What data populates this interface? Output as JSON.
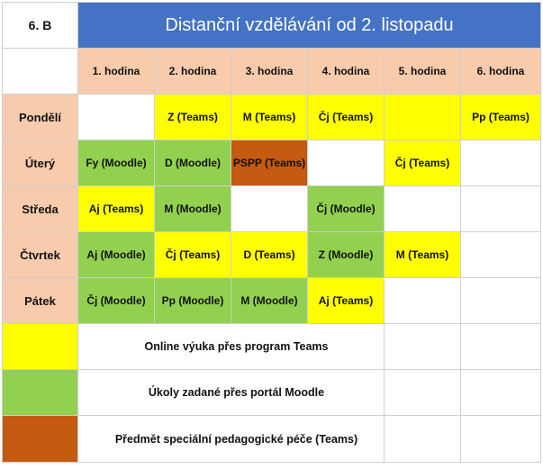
{
  "class_label": "6. B",
  "title": "Distanční vzdělávání  od 2. listopadu",
  "colors": {
    "header_blue": "#4472c4",
    "peach": "#f8cbad",
    "teams_yellow": "#ffff00",
    "moodle_green": "#92d050",
    "pspp_brown": "#c55a11",
    "white": "#ffffff"
  },
  "hours": [
    "1. hodina",
    "2. hodina",
    "3. hodina",
    "4. hodina",
    "5. hodina",
    "6. hodina"
  ],
  "days": [
    {
      "name": "Pondělí",
      "slots": [
        {
          "text": "",
          "type": "empty"
        },
        {
          "text": "Z (Teams)",
          "type": "teams"
        },
        {
          "text": "M (Teams)",
          "type": "teams"
        },
        {
          "text": "Čj (Teams)",
          "type": "teams"
        },
        {
          "text": "",
          "type": "teams"
        },
        {
          "text": "Pp (Teams)",
          "type": "teams"
        }
      ]
    },
    {
      "name": "Úterý",
      "slots": [
        {
          "text": "Fy (Moodle)",
          "type": "moodle"
        },
        {
          "text": "D (Moodle)",
          "type": "moodle"
        },
        {
          "text": "PSPP (Teams)",
          "type": "pspp"
        },
        {
          "text": "",
          "type": "empty"
        },
        {
          "text": "Čj (Teams)",
          "type": "teams"
        },
        {
          "text": "",
          "type": "empty"
        }
      ]
    },
    {
      "name": "Středa",
      "slots": [
        {
          "text": "Aj (Teams)",
          "type": "teams"
        },
        {
          "text": "M (Moodle)",
          "type": "moodle"
        },
        {
          "text": "",
          "type": "empty"
        },
        {
          "text": "Čj (Moodle)",
          "type": "moodle"
        },
        {
          "text": "",
          "type": "empty"
        },
        {
          "text": "",
          "type": "empty"
        }
      ]
    },
    {
      "name": "Čtvrtek",
      "slots": [
        {
          "text": "Aj (Moodle)",
          "type": "moodle"
        },
        {
          "text": "Čj (Teams)",
          "type": "teams"
        },
        {
          "text": "D (Teams)",
          "type": "teams"
        },
        {
          "text": "Z (Moodle)",
          "type": "moodle"
        },
        {
          "text": "M (Teams)",
          "type": "teams"
        },
        {
          "text": "",
          "type": "empty"
        }
      ]
    },
    {
      "name": "Pátek",
      "slots": [
        {
          "text": "Čj (Moodle)",
          "type": "moodle"
        },
        {
          "text": "Pp (Moodle)",
          "type": "moodle"
        },
        {
          "text": "M (Moodle)",
          "type": "moodle"
        },
        {
          "text": "Aj (Teams)",
          "type": "teams"
        },
        {
          "text": "",
          "type": "empty"
        },
        {
          "text": "",
          "type": "empty"
        }
      ]
    }
  ],
  "legend": [
    {
      "type": "teams",
      "text": "Online výuka přes program Teams"
    },
    {
      "type": "moodle",
      "text": "Úkoly zadané přes portál Moodle"
    },
    {
      "type": "pspp",
      "text": "Předmět speciální pedagogické péče (Teams)"
    }
  ]
}
